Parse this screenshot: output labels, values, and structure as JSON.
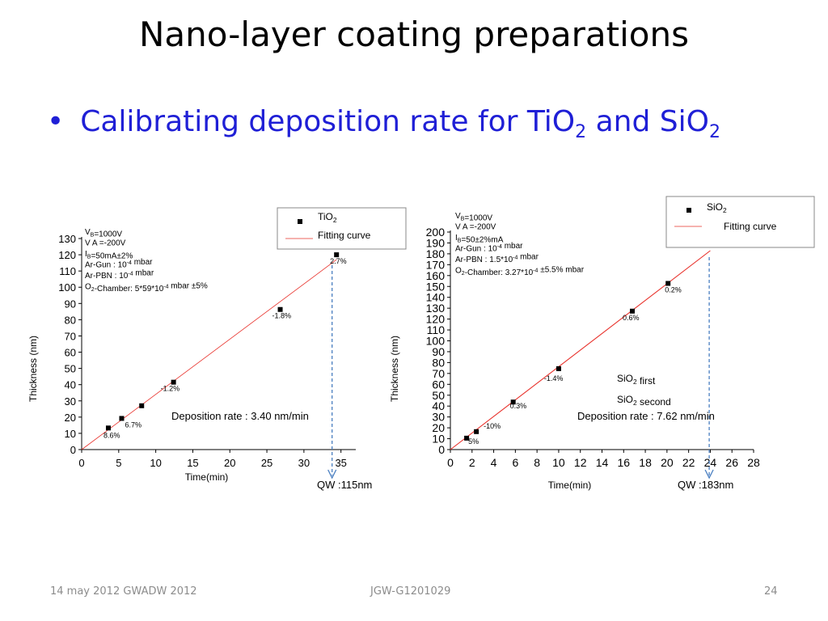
{
  "slide": {
    "title": "Nano-layer coating preparations",
    "bullet_prefix": "Calibrating deposition rate for TiO",
    "bullet_sub1": "2",
    "bullet_mid": " and SiO",
    "bullet_sub2": "2",
    "footer_left": "14 may 2012 GWADW 2012",
    "footer_center": "JGW-G1201029",
    "footer_right": "24"
  },
  "colors": {
    "bullet": "#1f1fd6",
    "fit_line": "#e8302a",
    "arrow": "#4a7fc1"
  },
  "chart_data": [
    {
      "type": "scatter",
      "title": "",
      "xlabel": "Time(min)",
      "ylabel": "Thickness (nm)",
      "xlim": [
        0,
        37
      ],
      "ylim": [
        0,
        130
      ],
      "xticks": [
        0,
        5,
        10,
        15,
        20,
        25,
        30,
        35
      ],
      "yticks": [
        0,
        10,
        20,
        30,
        40,
        50,
        60,
        70,
        80,
        90,
        100,
        110,
        120,
        130
      ],
      "series": [
        {
          "name": "TiO2",
          "marker": "square",
          "x": [
            3.6,
            5.4,
            8.1,
            12.4,
            26.8,
            34.4
          ],
          "y": [
            13.3,
            19.2,
            27,
            41.5,
            86.3,
            120
          ],
          "labels": [
            "8.6%",
            "6.7%",
            "",
            "-1.2%",
            "-1.8%",
            "2.7%"
          ]
        },
        {
          "name": "Fitting curve",
          "type": "line",
          "x": [
            0,
            34.4
          ],
          "y": [
            0,
            117
          ]
        }
      ],
      "legend": [
        "TiO2",
        "Fitting curve"
      ],
      "conditions": [
        "VB=1000V",
        "V A =-200V",
        " IB=50mA±2%",
        "Ar-Gun : 10-4 mbar",
        "Ar-PBN : 10-4 mbar",
        "O2-Chamber: 5*59*10-4 mbar ±5%"
      ],
      "deposition_rate": "Deposition rate : 3.40 nm/min",
      "qw_label": "QW :115nm",
      "qw_x": 33.8
    },
    {
      "type": "scatter",
      "title": "",
      "xlabel": "Time(min)",
      "ylabel": "Thickness (nm)",
      "xlim": [
        0,
        28
      ],
      "ylim": [
        0,
        200
      ],
      "xticks": [
        0,
        2,
        4,
        6,
        8,
        10,
        12,
        14,
        16,
        18,
        20,
        22,
        24,
        26,
        28
      ],
      "yticks": [
        0,
        10,
        20,
        30,
        40,
        50,
        60,
        70,
        80,
        90,
        100,
        110,
        120,
        130,
        140,
        150,
        160,
        170,
        180,
        190,
        200
      ],
      "series": [
        {
          "name": "SiO2",
          "marker": "square",
          "x": [
            1.5,
            2.4,
            5.8,
            10,
            16.8,
            20.1
          ],
          "y": [
            10.5,
            16.5,
            43.7,
            74.4,
            127.3,
            152.8
          ],
          "labels": [
            "5%",
            "-10%",
            "0.3%",
            "-1.4%",
            "0.6%",
            "0.2%"
          ]
        },
        {
          "name": "Fitting curve",
          "type": "line",
          "x": [
            0,
            24
          ],
          "y": [
            0,
            182.9
          ]
        }
      ],
      "legend": [
        "SiO2",
        "Fitting curve"
      ],
      "conditions": [
        "VB=1000V",
        "V A =-200V",
        " IB=50±2%mA",
        "Ar-Gun : 10-4 mbar",
        "Ar-PBN : 1.5*10-4 mbar",
        "O2-Chamber: 3.27*10-4 ±5.5% mbar"
      ],
      "annotation_first": "SiO2 first",
      "annotation_second": "SiO2 second",
      "deposition_rate": "Deposition rate : 7.62 nm/min",
      "qw_label": "QW :183nm",
      "qw_x": 23.9
    }
  ]
}
